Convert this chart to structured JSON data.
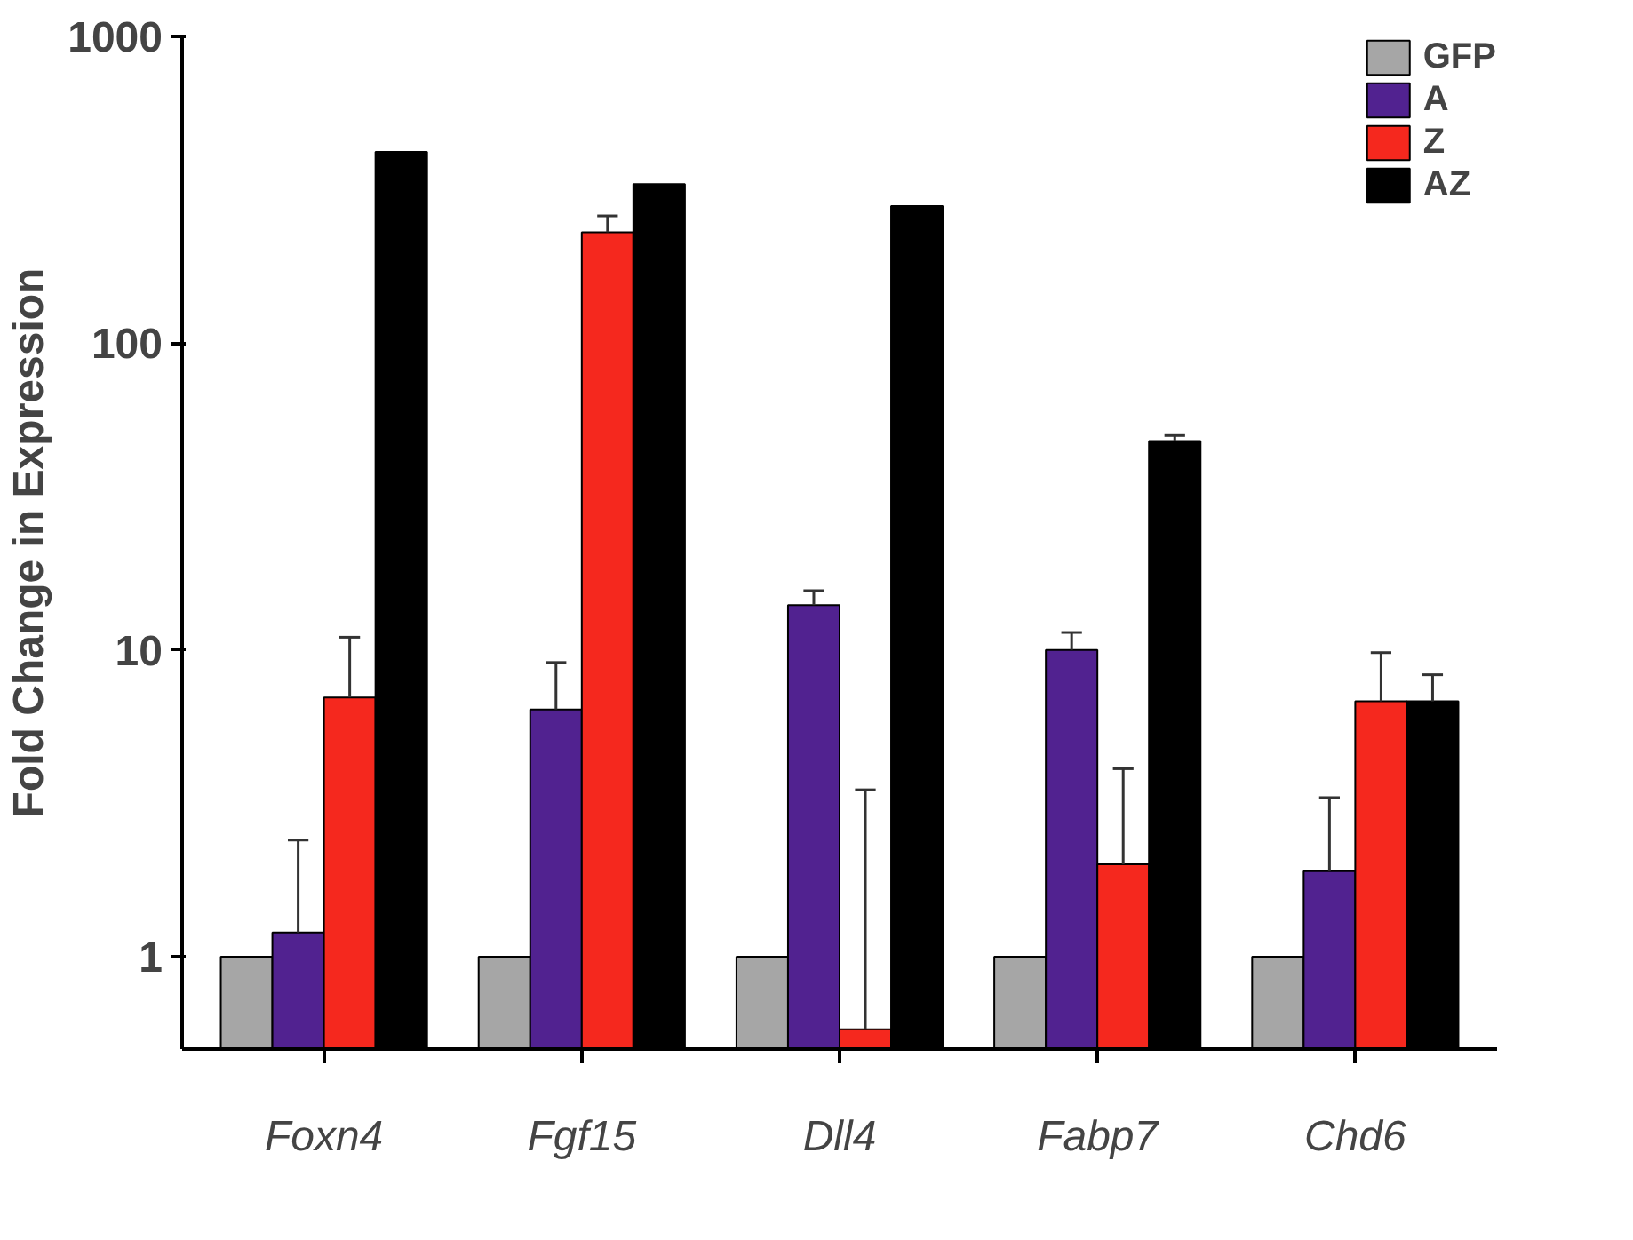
{
  "chart_data": {
    "type": "bar",
    "ylabel": "Fold Change in Expression",
    "categories": [
      "Foxn4",
      "Fgf15",
      "Dll4",
      "Fabp7",
      "Chd6"
    ],
    "log": true,
    "ylim": [
      0.5,
      1000
    ],
    "yticks": [
      1,
      10,
      100,
      1000
    ],
    "grid": false,
    "legend": "top right",
    "series": [
      {
        "name": "GFP",
        "color": "#a6a6a6",
        "values": [
          1,
          1,
          1,
          1,
          1
        ]
      },
      {
        "name": "A",
        "color": "#512290",
        "values": [
          1.2,
          6.4,
          14,
          10,
          1.9
        ],
        "errors": [
          [
            1.2,
            2.4
          ],
          [
            6.4,
            9.1
          ],
          [
            14,
            15.6
          ],
          [
            10,
            11.4
          ],
          [
            1.9,
            3.3
          ]
        ]
      },
      {
        "name": "Z",
        "color": "#f5281e",
        "values": [
          7,
          230,
          0.58,
          2,
          6.8
        ],
        "errors": [
          [
            7,
            11
          ],
          [
            230,
            260
          ],
          [
            0.58,
            3.5
          ],
          [
            2,
            4.1
          ],
          [
            6.8,
            9.8
          ]
        ]
      },
      {
        "name": "AZ",
        "color": "#000000",
        "values": [
          420,
          330,
          280,
          48,
          6.8
        ],
        "errors": [
          null,
          null,
          null,
          [
            48,
            50
          ],
          [
            6.8,
            8.3
          ]
        ]
      }
    ]
  }
}
